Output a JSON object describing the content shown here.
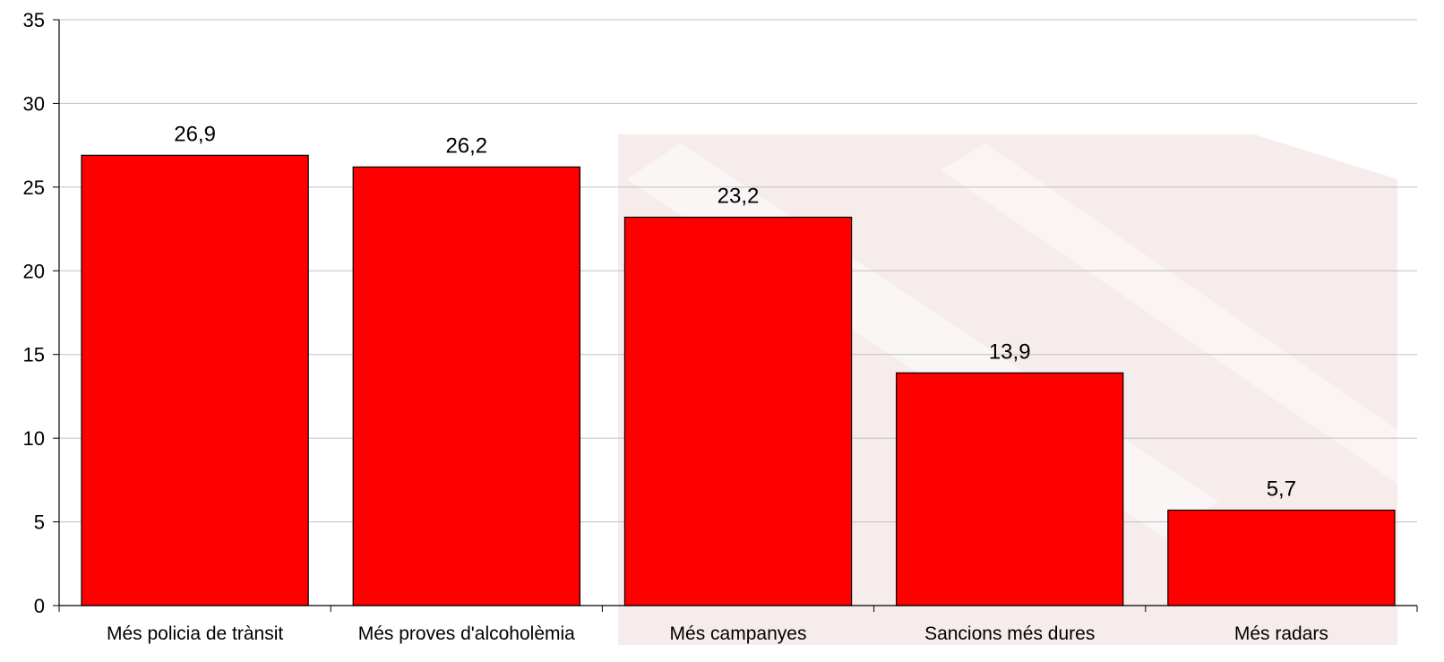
{
  "chart_data": {
    "type": "bar",
    "categories": [
      "Més policia de trànsit",
      "Més proves d'alcoholèmia",
      "Més campanyes",
      "Sancions més dures",
      "Més radars"
    ],
    "values": [
      26.9,
      26.2,
      23.2,
      13.9,
      5.7
    ],
    "data_labels": [
      "26,9",
      "26,2",
      "23,2",
      "13,9",
      "5,7"
    ],
    "yticks": [
      "0",
      "5",
      "10",
      "15",
      "20",
      "25",
      "30",
      "35"
    ],
    "ylim": [
      0,
      35
    ],
    "grid": true,
    "legend": "none",
    "title": "",
    "xlabel": "",
    "ylabel": "",
    "colors": {
      "bar": "#ff0000",
      "bar_stroke": "#000000",
      "grid": "#c0c0c0",
      "axis": "#000000",
      "watermark": "#e8c8c8"
    }
  }
}
